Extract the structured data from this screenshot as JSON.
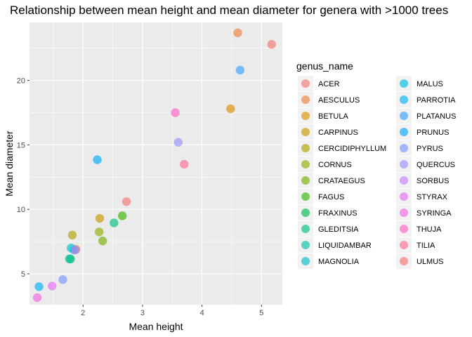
{
  "chart_data": {
    "type": "scatter",
    "title": "Relationship between mean height and mean diameter for genera with >1000 trees",
    "xlabel": "Mean height",
    "ylabel": "Mean diameter",
    "xlim": [
      1.1,
      5.35
    ],
    "ylim": [
      2.6,
      24.5
    ],
    "x_ticks": [
      2,
      3,
      4,
      5
    ],
    "y_ticks": [
      5,
      10,
      15,
      20
    ],
    "grid": true,
    "legend_title": "genus_name",
    "legend_position": "right",
    "series": [
      {
        "name": "ACER",
        "color": "#F8766D",
        "points": [
          [
            2.73,
            10.6
          ]
        ]
      },
      {
        "name": "AESCULUS",
        "color": "#EC8239",
        "points": [
          [
            4.6,
            23.7
          ]
        ]
      },
      {
        "name": "BETULA",
        "color": "#DB8E00",
        "points": [
          [
            4.48,
            17.8
          ]
        ]
      },
      {
        "name": "CARPINUS",
        "color": "#C79800",
        "points": [
          [
            2.28,
            9.3
          ],
          [
            1.88,
            6.9
          ]
        ]
      },
      {
        "name": "CERCIDIPHYLLUM",
        "color": "#AFA100",
        "points": [
          [
            1.82,
            8.0
          ]
        ]
      },
      {
        "name": "CORNUS",
        "color": "#93AA00",
        "points": [
          [
            2.27,
            8.25
          ]
        ]
      },
      {
        "name": "CRATAEGUS",
        "color": "#72B000",
        "points": [
          [
            2.33,
            7.55
          ]
        ]
      },
      {
        "name": "FAGUS",
        "color": "#39B600",
        "points": [
          [
            2.66,
            9.5
          ]
        ]
      },
      {
        "name": "FRAXINUS",
        "color": "#00BB4E",
        "points": [
          [
            1.79,
            6.15
          ]
        ]
      },
      {
        "name": "GLEDITSIA",
        "color": "#00BF7D",
        "points": [
          [
            2.52,
            8.95
          ]
        ]
      },
      {
        "name": "LIQUIDAMBAR",
        "color": "#00C1A3",
        "points": [
          [
            1.77,
            6.15
          ]
        ]
      },
      {
        "name": "MAGNOLIA",
        "color": "#00BFC4",
        "points": [
          [
            1.8,
            7.0
          ]
        ]
      },
      {
        "name": "MALUS",
        "color": "#00BAE0",
        "points": [
          [
            1.85,
            6.85
          ]
        ]
      },
      {
        "name": "PARROTIA",
        "color": "#00B0F6",
        "points": [
          [
            1.26,
            4.0
          ]
        ]
      },
      {
        "name": "PLATANUS",
        "color": "#35A2FF",
        "points": [
          [
            4.64,
            20.8
          ]
        ]
      },
      {
        "name": "PRUNUS",
        "color": "#00A9FF",
        "points": [
          [
            2.24,
            13.85
          ]
        ]
      },
      {
        "name": "PYRUS",
        "color": "#7997FF",
        "points": [
          [
            1.66,
            4.55
          ]
        ]
      },
      {
        "name": "QUERCUS",
        "color": "#9590FF",
        "points": [
          [
            3.6,
            15.2
          ]
        ]
      },
      {
        "name": "SORBUS",
        "color": "#C77CFF",
        "points": [
          [
            1.87,
            6.85
          ]
        ]
      },
      {
        "name": "STYRAX",
        "color": "#E76BF3",
        "points": [
          [
            1.48,
            4.05
          ]
        ]
      },
      {
        "name": "SYRINGA",
        "color": "#F564E3",
        "points": [
          [
            1.23,
            3.15
          ]
        ]
      },
      {
        "name": "THUJA",
        "color": "#FF61C3",
        "points": [
          [
            3.55,
            17.5
          ]
        ]
      },
      {
        "name": "TILIA",
        "color": "#FF6C91",
        "points": [
          [
            3.7,
            13.5
          ]
        ]
      },
      {
        "name": "ULMUS",
        "color": "#F8766D",
        "points": [
          [
            5.17,
            22.8
          ]
        ]
      }
    ]
  }
}
